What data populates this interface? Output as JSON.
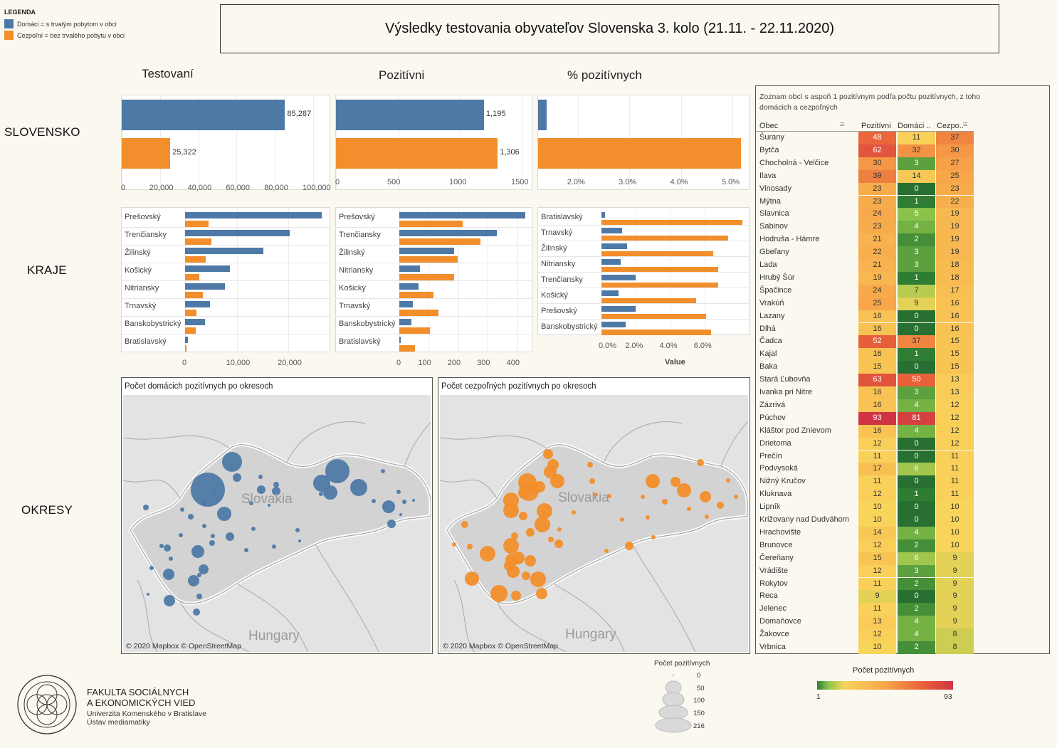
{
  "legend": {
    "title": "LEGENDA",
    "items": [
      {
        "label": "Domáci = s trvalým pobytom v obci",
        "color": "#4e79a7"
      },
      {
        "label": "Cezpoľní = bez trvalého pobytu v obci",
        "color": "#f28e2b"
      }
    ]
  },
  "title": "Výsledky testovania obyvateľov Slovenska 3. kolo (21.11. - 22.11.2020)",
  "columns": {
    "tested": "Testovaní",
    "positive": "Pozitívni",
    "pct": "% pozitívnych"
  },
  "rows": {
    "slovensko": "SLOVENSKO",
    "kraje": "KRAJE",
    "okresy": "OKRESY"
  },
  "slovensko": {
    "tested": {
      "domaci": 85287,
      "cezpolni": 25322,
      "domaci_label": "85,287",
      "cezpolni_label": "25,322",
      "ticks": [
        "0",
        "20,000",
        "40,000",
        "60,000",
        "80,000",
        "100,000"
      ]
    },
    "positive": {
      "domaci": 1195,
      "cezpolni": 1306,
      "domaci_label": "1,195",
      "cezpolni_label": "1,306",
      "ticks": [
        "0",
        "500",
        "1000",
        "1500"
      ]
    },
    "pct": {
      "domaci": 1.4,
      "cezpolni": 5.16,
      "ticks": [
        "2.0%",
        "3.0%",
        "4.0%",
        "5.0%"
      ]
    }
  },
  "kraje": {
    "tested": {
      "rows": [
        {
          "name": "Prešovský",
          "d": 26500,
          "c": 4600
        },
        {
          "name": "Trenčiansky",
          "d": 20200,
          "c": 5100
        },
        {
          "name": "Žilinský",
          "d": 15200,
          "c": 4000
        },
        {
          "name": "Košický",
          "d": 8700,
          "c": 2800
        },
        {
          "name": "Nitriansky",
          "d": 7700,
          "c": 3500
        },
        {
          "name": "Trnavský",
          "d": 4800,
          "c": 2200
        },
        {
          "name": "Banskobystrický",
          "d": 3900,
          "c": 2000
        },
        {
          "name": "Bratislavský",
          "d": 600,
          "c": 300
        }
      ],
      "ticks": [
        "0",
        "10,000",
        "20,000"
      ]
    },
    "positive": {
      "rows": [
        {
          "name": "Prešovský",
          "d": 428,
          "c": 215
        },
        {
          "name": "Trenčiansky",
          "d": 330,
          "c": 275
        },
        {
          "name": "Žilinský",
          "d": 185,
          "c": 197
        },
        {
          "name": "Nitriansky",
          "d": 70,
          "c": 185
        },
        {
          "name": "Košický",
          "d": 65,
          "c": 117
        },
        {
          "name": "Trnavský",
          "d": 45,
          "c": 133
        },
        {
          "name": "Banskobystrický",
          "d": 40,
          "c": 103
        },
        {
          "name": "Bratislavský",
          "d": 2,
          "c": 52
        }
      ],
      "ticks": [
        "0",
        "100",
        "200",
        "300",
        "400"
      ]
    },
    "pct": {
      "rows": [
        {
          "name": "Bratislavský",
          "d": 0.2,
          "c": 8.2
        },
        {
          "name": "Trnavský",
          "d": 1.2,
          "c": 7.4
        },
        {
          "name": "Žilinský",
          "d": 1.5,
          "c": 6.5
        },
        {
          "name": "Nitriansky",
          "d": 1.1,
          "c": 6.8
        },
        {
          "name": "Trenčiansky",
          "d": 2.0,
          "c": 6.8
        },
        {
          "name": "Košický",
          "d": 1.0,
          "c": 5.5
        },
        {
          "name": "Prešovský",
          "d": 2.0,
          "c": 6.1
        },
        {
          "name": "Banskobystrický",
          "d": 1.4,
          "c": 6.4
        }
      ],
      "ticks": [
        "0.0%",
        "2.0%",
        "4.0%",
        "6.0%"
      ],
      "xlabel": "Value"
    }
  },
  "maps": {
    "domaci": {
      "title": "Počet domácich pozitívnych po okresoch",
      "copyright": "© 2020 Mapbox  © OpenStreetMap",
      "country": "Slovakia",
      "neighbor": "Hungary"
    },
    "cezpolni": {
      "title": "Počet cezpoľných pozitívnych po okresoch",
      "copyright": "© 2020 Mapbox  © OpenStreetMap",
      "country": "Slovakia",
      "neighbor": "Hungary"
    }
  },
  "size_legend": {
    "title": "Počet pozitívnych",
    "values": [
      "0",
      "50",
      "100",
      "150",
      "216"
    ]
  },
  "color_legend": {
    "title": "Počet pozitívnych",
    "min": "1",
    "max": "93"
  },
  "logo": {
    "line1": "FAKULTA SOCIÁLNYCH",
    "line2": "A EKONOMICKÝCH VIED",
    "line3": "Univerzita Komenského v Bratislave",
    "line4": "Ústav mediamatiky"
  },
  "table": {
    "caption": "Zoznam obcí s aspoň 1 pozitívnym podľa počtu pozitívnych, z toho domácich a cezpoľných",
    "headers": {
      "obec": "Obec",
      "pozitivni": "Pozitívni",
      "domaci": "Domáci ..",
      "cezpo": "Cezpo.."
    },
    "rows": [
      [
        "Šurany",
        48,
        11,
        37
      ],
      [
        "Bytča",
        62,
        32,
        30
      ],
      [
        "Chocholná - Velčice",
        30,
        3,
        27
      ],
      [
        "Ilava",
        39,
        14,
        25
      ],
      [
        "Vinosady",
        23,
        0,
        23
      ],
      [
        "Mýtna",
        23,
        1,
        22
      ],
      [
        "Slavnica",
        24,
        5,
        19
      ],
      [
        "Sabinov",
        23,
        4,
        19
      ],
      [
        "Hodruša - Hámre",
        21,
        2,
        19
      ],
      [
        "Gbeľany",
        22,
        3,
        19
      ],
      [
        "Lada",
        21,
        3,
        18
      ],
      [
        "Hrubý Šúr",
        19,
        1,
        18
      ],
      [
        "Špačince",
        24,
        7,
        17
      ],
      [
        "Vrakúň",
        25,
        9,
        16
      ],
      [
        "Lazany",
        16,
        0,
        16
      ],
      [
        "Dlhá",
        16,
        0,
        16
      ],
      [
        "Čadca",
        52,
        37,
        15
      ],
      [
        "Kajal",
        16,
        1,
        15
      ],
      [
        "Baka",
        15,
        0,
        15
      ],
      [
        "Stará Ľubovňa",
        63,
        50,
        13
      ],
      [
        "Ivanka pri Nitre",
        16,
        3,
        13
      ],
      [
        "Zázrivá",
        16,
        4,
        12
      ],
      [
        "Púchov",
        93,
        81,
        12
      ],
      [
        "Kláštor pod Znievom",
        16,
        4,
        12
      ],
      [
        "Drietoma",
        12,
        0,
        12
      ],
      [
        "Prečín",
        11,
        0,
        11
      ],
      [
        "Podvysoká",
        17,
        6,
        11
      ],
      [
        "Nižný Kručov",
        11,
        0,
        11
      ],
      [
        "Kluknava",
        12,
        1,
        11
      ],
      [
        "Lipník",
        10,
        0,
        10
      ],
      [
        "Križovany nad Dudváhom",
        10,
        0,
        10
      ],
      [
        "Hrachovište",
        14,
        4,
        10
      ],
      [
        "Brunovce",
        12,
        2,
        10
      ],
      [
        "Čereňany",
        15,
        6,
        9
      ],
      [
        "Vrádište",
        12,
        3,
        9
      ],
      [
        "Rokytov",
        11,
        2,
        9
      ],
      [
        "Reca",
        9,
        0,
        9
      ],
      [
        "Jelenec",
        11,
        2,
        9
      ],
      [
        "Domaňovce",
        13,
        4,
        9
      ],
      [
        "Žakovce",
        12,
        4,
        8
      ],
      [
        "Vrbnica",
        10,
        2,
        8
      ]
    ]
  }
}
